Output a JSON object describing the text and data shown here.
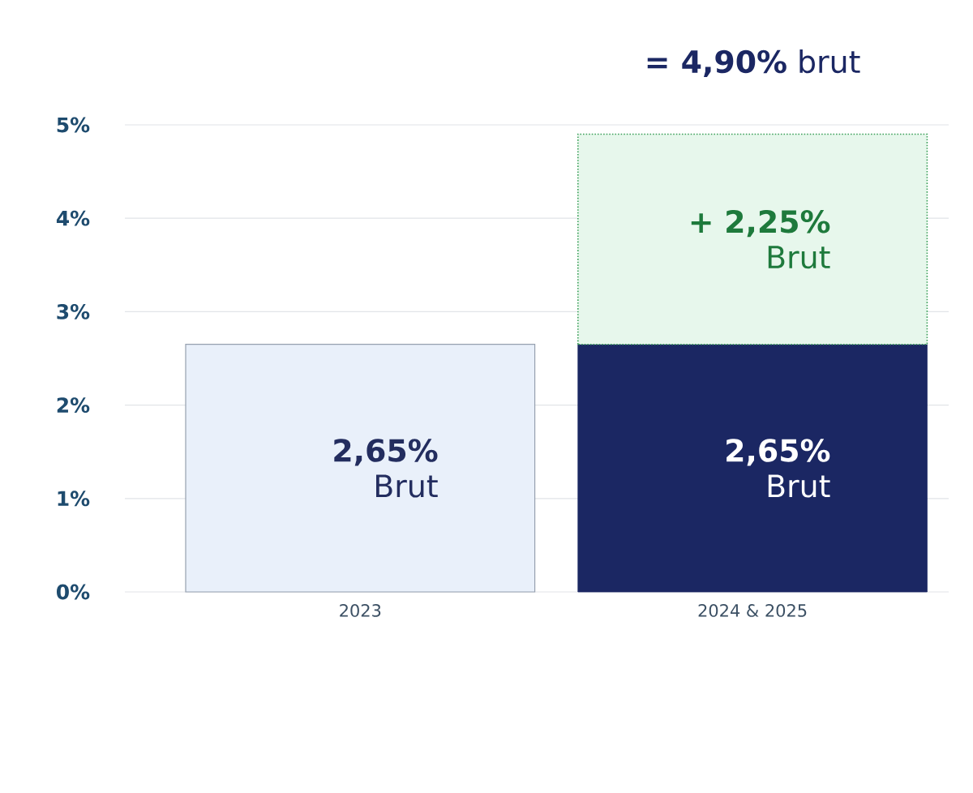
{
  "chart_data": {
    "type": "bar",
    "stacked": true,
    "categories": [
      "2023",
      "2024 & 2025"
    ],
    "series": [
      {
        "colors": [
          "#e9f0fa",
          "#1b2763"
        ],
        "values": [
          2.65,
          2.65
        ],
        "value_labels": [
          "**2,65%** Brut",
          "**2,65%** Brut"
        ]
      },
      {
        "color": "#e7f7ec",
        "values": [
          null,
          2.25
        ],
        "value_labels": [
          null,
          "**+ 2,25%** Brut"
        ]
      }
    ],
    "totals": [
      null,
      "**= 4,90%** brut"
    ],
    "ylim": [
      0,
      5
    ],
    "yticks": [
      {
        "value": 0,
        "label": "0%"
      },
      {
        "value": 1,
        "label": "1%"
      },
      {
        "value": 2,
        "label": "2%"
      },
      {
        "value": 3,
        "label": "3%"
      },
      {
        "value": 4,
        "label": "4%"
      },
      {
        "value": 5,
        "label": "5%"
      }
    ],
    "grid": "y"
  }
}
